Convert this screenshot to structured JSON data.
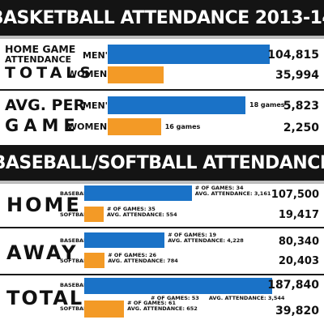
{
  "colors": {
    "mens": "#1a72c7",
    "womens": "#f39a26",
    "band": "#141414"
  },
  "chart_data": [
    {
      "type": "bar",
      "title": "BASKETBALL ATTENDANCE 2013-14",
      "groups": [
        {
          "label": [
            "HOME GAME",
            "ATTENDANCE",
            "TOTALS"
          ],
          "bars": [
            {
              "label": "MEN'S",
              "value": 104815,
              "display": "104,815"
            },
            {
              "label": "WOMEN'S",
              "value": 35994,
              "display": "35,994"
            }
          ]
        },
        {
          "label": [
            "AVG. PER",
            "GAME"
          ],
          "bars": [
            {
              "label": "MEN'S",
              "value": 5823,
              "display": "5,823",
              "note": "18 games"
            },
            {
              "label": "WOMEN'S",
              "value": 2250,
              "display": "2,250",
              "note": "16 games"
            }
          ]
        }
      ]
    },
    {
      "type": "bar",
      "title": "BASEBALL/SOFTBALL ATTENDANCE",
      "groups": [
        {
          "label": [
            "HOME"
          ],
          "bars": [
            {
              "label": "BASEBALL",
              "value": 107500,
              "display": "107,500",
              "notes": [
                "# OF GAMES: 34",
                "AVG. ATTENDANCE: 3,161"
              ]
            },
            {
              "label": "SOFTBALL",
              "value": 19417,
              "display": "19,417",
              "notes": [
                "# OF GAMES: 35",
                "AVG. ATTENDANCE: 554"
              ]
            }
          ]
        },
        {
          "label": [
            "AWAY"
          ],
          "bars": [
            {
              "label": "BASEBALL",
              "value": 80340,
              "display": "80,340",
              "notes": [
                "# OF GAMES: 19",
                "AVG. ATTENDANCE: 4,228"
              ]
            },
            {
              "label": "SOFTBALL",
              "value": 20403,
              "display": "20,403",
              "notes": [
                "# OF GAMES: 26",
                "AVG. ATTENDANCE: 784"
              ]
            }
          ]
        },
        {
          "label": [
            "TOTAL"
          ],
          "bars": [
            {
              "label": "BASEBALL",
              "value": 187840,
              "display": "187,840",
              "notes": [
                "# OF GAMES: 53",
                "AVG. ATTENDANCE: 3,544"
              ]
            },
            {
              "label": "SOFTBALL",
              "value": 39820,
              "display": "39,820",
              "notes": [
                "# OF GAMES: 61",
                "AVG. ATTENDANCE: 652"
              ]
            }
          ]
        }
      ]
    }
  ]
}
